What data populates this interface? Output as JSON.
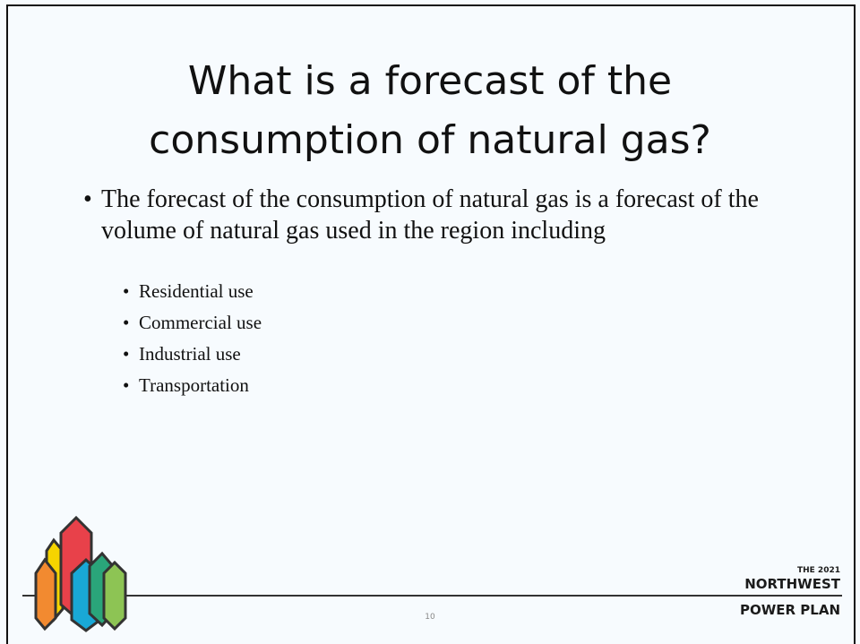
{
  "title": "What is a forecast of the consumption of natural gas?",
  "bullets": [
    {
      "text": "The forecast of the consumption of natural gas is a forecast of the volume of natural gas used in the region including",
      "sub": [
        "Residential use",
        "Commercial use",
        "Industrial use",
        "Transportation"
      ]
    }
  ],
  "page_number": "10",
  "logo": {
    "line1": "THE 2021",
    "line2": "NORTHWEST",
    "line3": "POWER PLAN"
  }
}
